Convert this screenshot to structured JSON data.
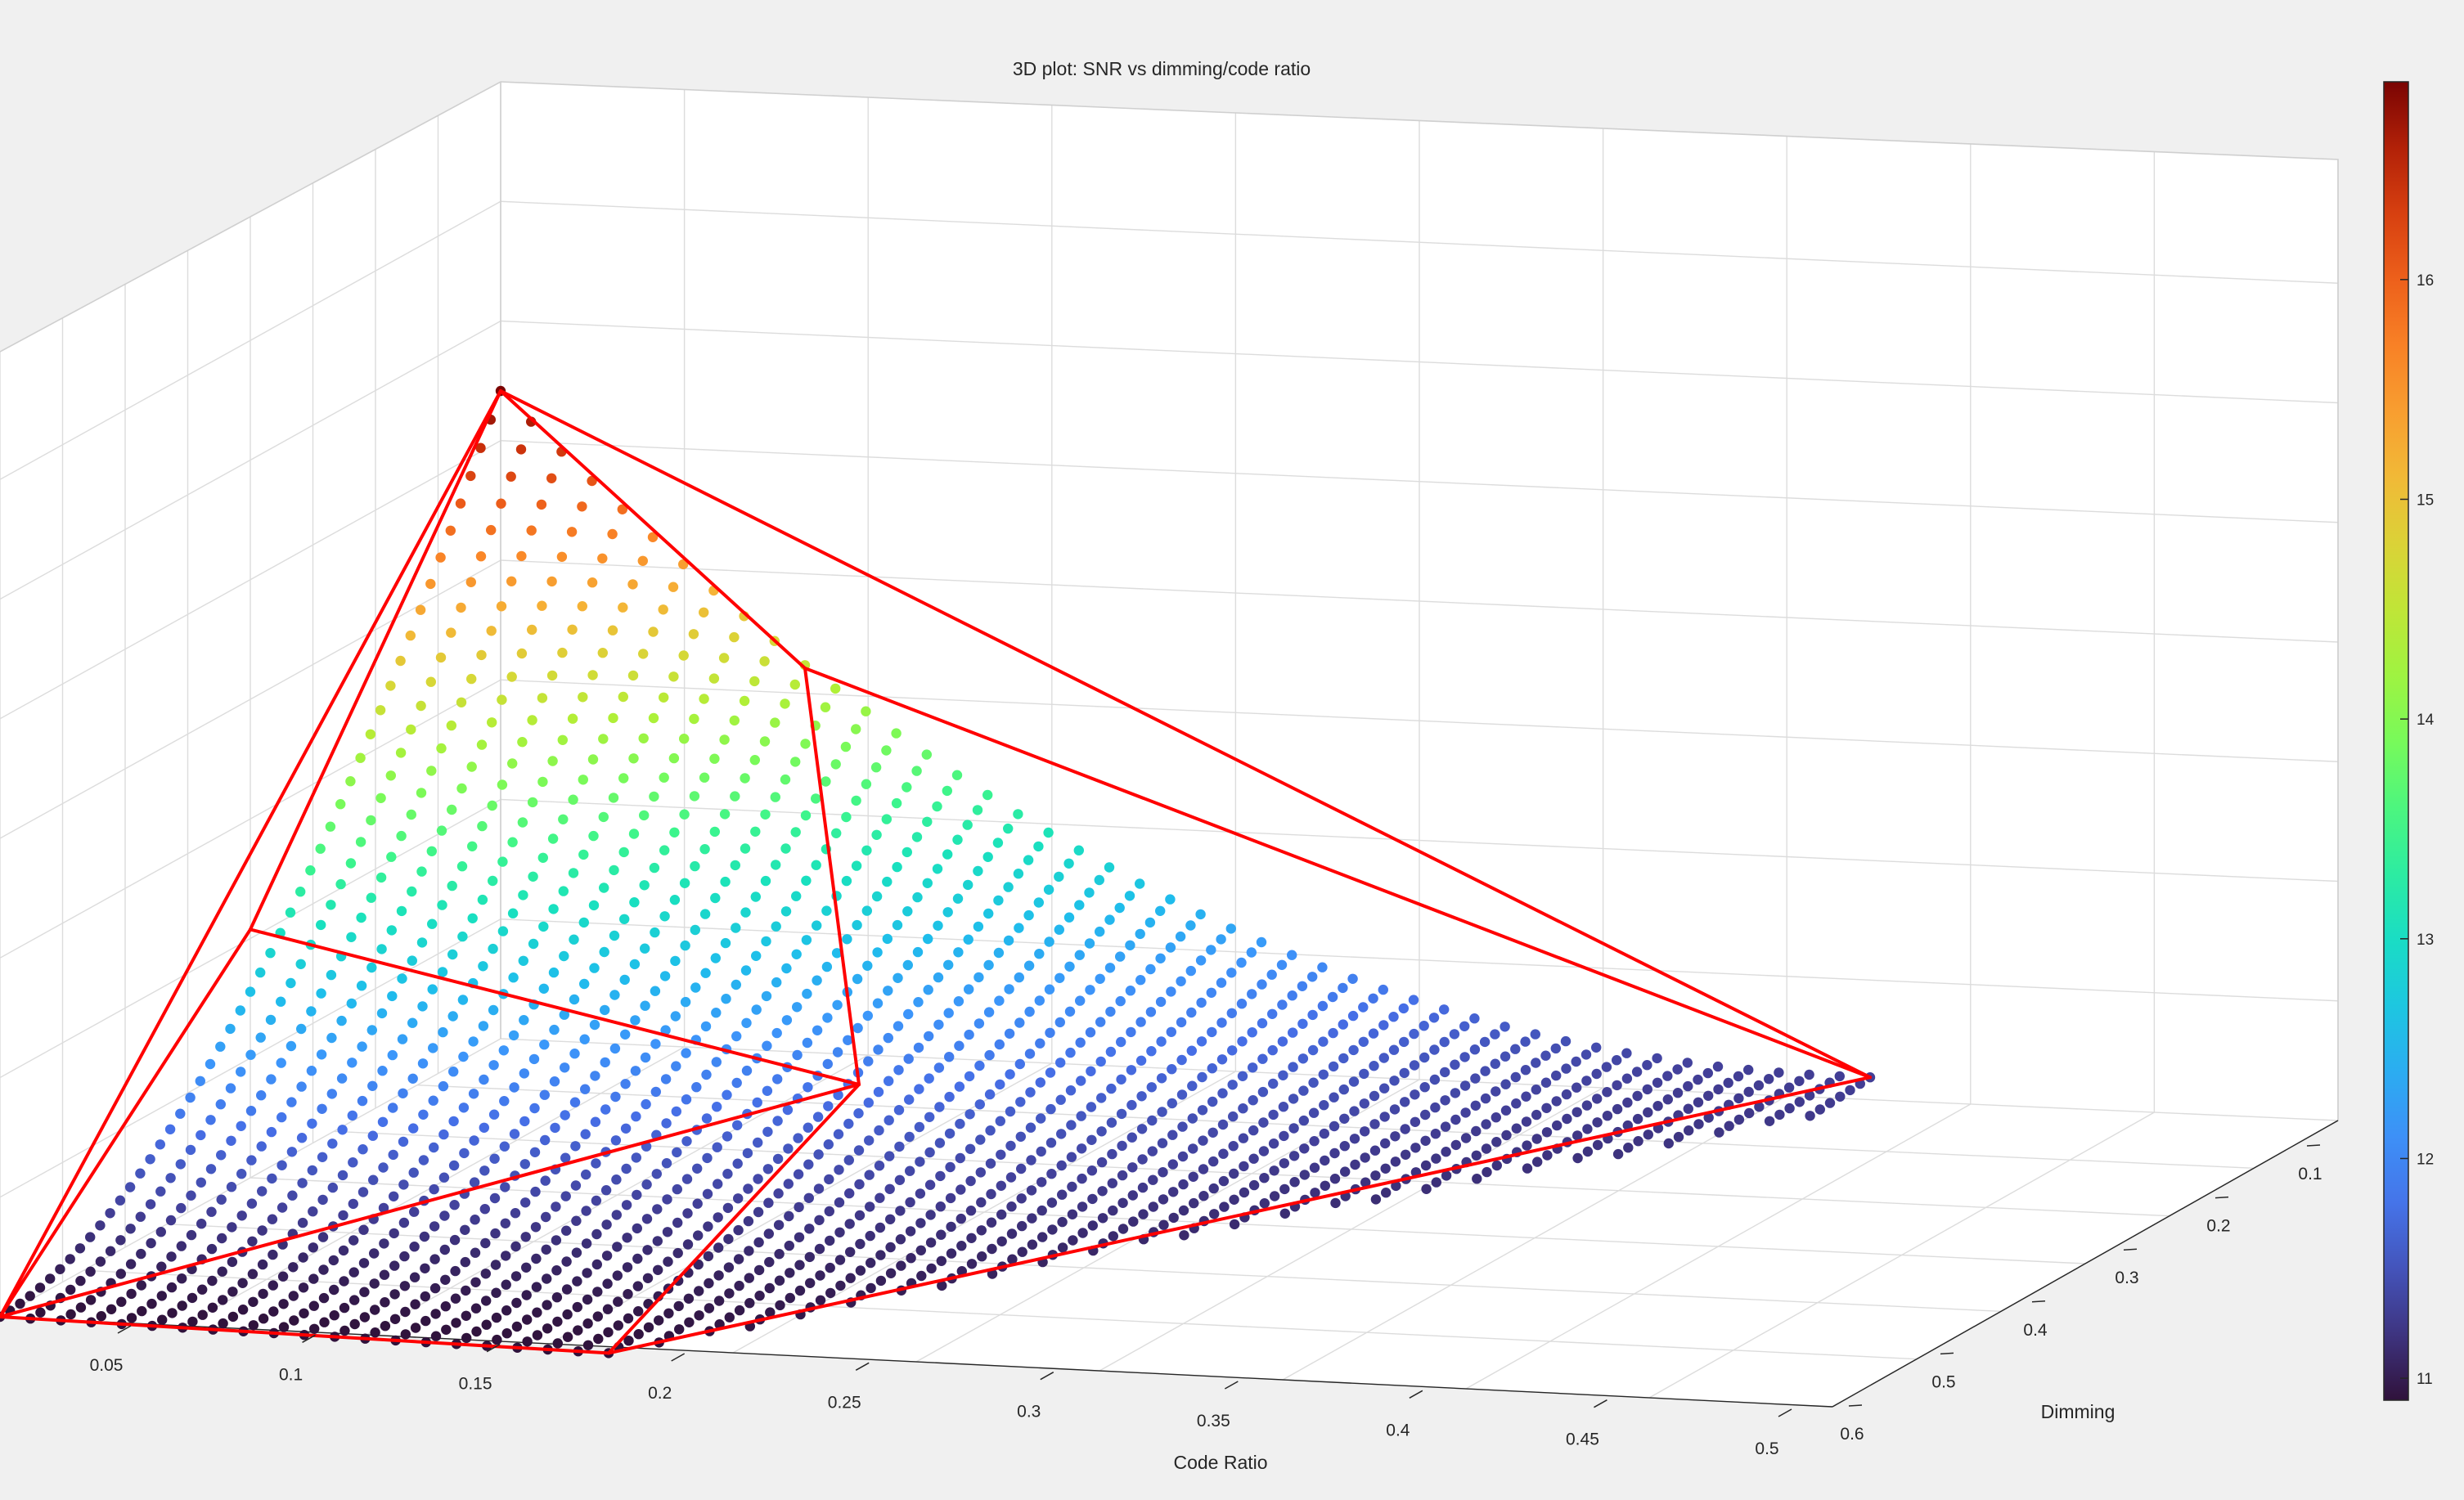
{
  "figure": {
    "background_color": "#f0f0f0",
    "axes_background": "#ffffff",
    "grid_color": "#dcdcdc",
    "outline_color": "#ff0000"
  },
  "chart_data": {
    "type": "scatter3d",
    "title": "3D plot: SNR vs dimming/code ratio",
    "xlabel": "Code Ratio",
    "ylabel": "Dimming",
    "zlabel": "",
    "colormap": "turbo",
    "grid": true,
    "legend": "none",
    "x_ticks": [
      "0.05",
      "0.1",
      "0.15",
      "0.2",
      "0.25",
      "0.3",
      "0.35",
      "0.4",
      "0.45",
      "0.5"
    ],
    "y_ticks": [
      "0.1",
      "0.2",
      "0.3",
      "0.4",
      "0.5",
      "0.6"
    ],
    "colorbar": {
      "location": "right",
      "ticks": [
        "11",
        "12",
        "13",
        "14",
        "15",
        "16"
      ],
      "range": [
        10.9,
        16.9
      ]
    },
    "points_summary": {
      "x_range": [
        0.05,
        0.5
      ],
      "y_range": [
        0.1,
        0.6
      ],
      "snr_range": [
        10.9,
        16.9
      ]
    },
    "outline_vertices": [
      {
        "x": 0.05,
        "y": 0.6,
        "snr": 10.9,
        "label": ""
      },
      {
        "x": 0.05,
        "y": 0.1,
        "snr": 16.9,
        "label": ""
      },
      {
        "x": 0.5,
        "y": 0.1,
        "snr": 11.3,
        "label": ""
      },
      {
        "x": 0.25,
        "y": 0.6,
        "snr": 10.9,
        "label": ""
      },
      {
        "x": 0.05,
        "y": 0.35,
        "snr": 13.2,
        "label": ""
      },
      {
        "x": 0.15,
        "y": 0.1,
        "snr": 14.5,
        "label": ""
      },
      {
        "x": 0.25,
        "y": 0.35,
        "snr": 12.1,
        "label": ""
      }
    ]
  }
}
